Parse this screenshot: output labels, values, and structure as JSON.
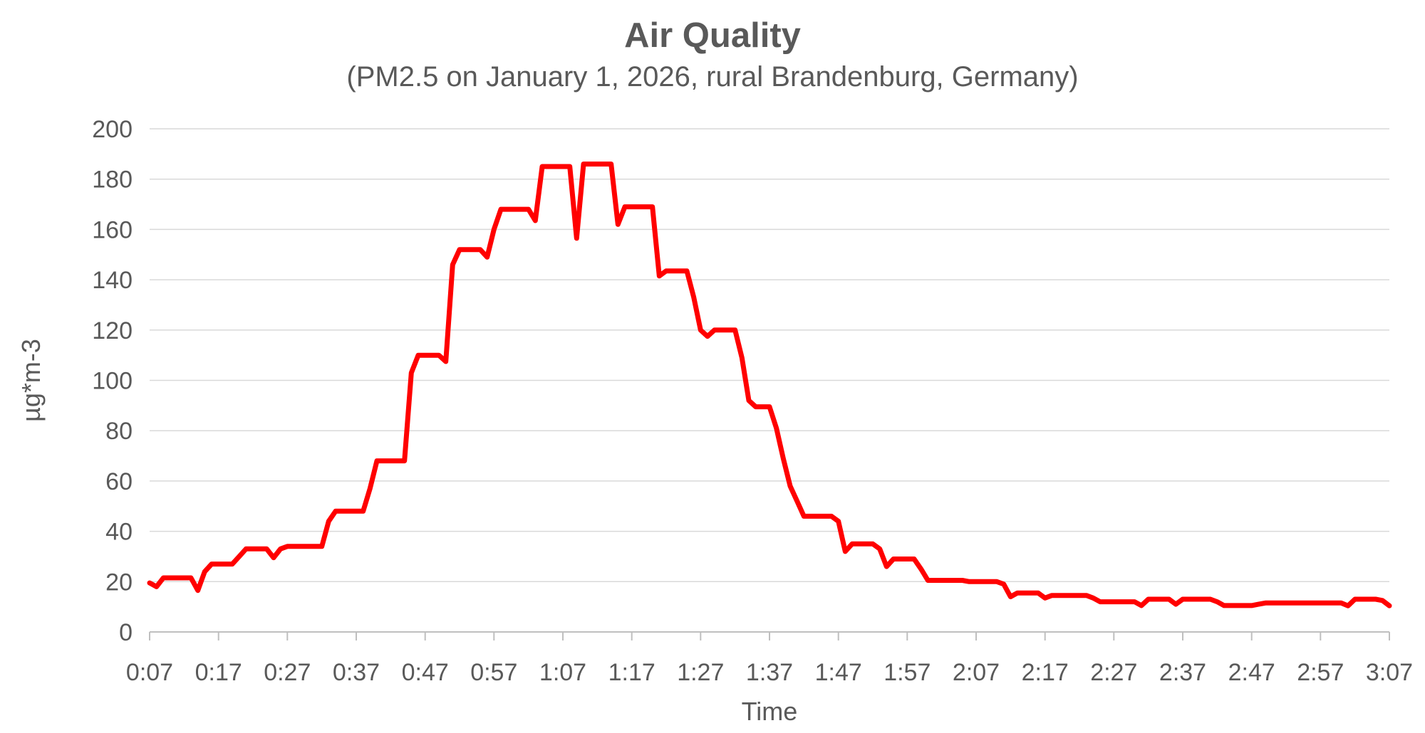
{
  "chart_data": {
    "type": "line",
    "title": "Air Quality",
    "subtitle": "(PM2.5 on January 1, 2026, rural Brandenburg, Germany)",
    "xlabel": "Time",
    "ylabel": "µg*m-3",
    "ylim": [
      0,
      200
    ],
    "y_tick_values": [
      0,
      20,
      40,
      60,
      80,
      100,
      120,
      140,
      160,
      180,
      200
    ],
    "y_tick_labels": [
      "0",
      "20",
      "40",
      "60",
      "80",
      "100",
      "120",
      "140",
      "160",
      "180",
      "200"
    ],
    "x_tick_labels": [
      "0:07",
      "0:17",
      "0:27",
      "0:37",
      "0:47",
      "0:57",
      "1:07",
      "1:17",
      "1:27",
      "1:37",
      "1:47",
      "1:57",
      "2:07",
      "2:17",
      "2:27",
      "2:37",
      "2:47",
      "2:57",
      "3:07"
    ],
    "grid": "horizontal gridlines every 20 units",
    "legend": "none",
    "colors": {
      "line": "#FF0000",
      "text": "#595959",
      "gridline": "#D9D9D9",
      "axis": "#BFBFBF"
    },
    "series": [
      {
        "name": "PM2.5",
        "start_time": "0:07",
        "end_time": "3:07",
        "interval_minutes": 1,
        "values": [
          19.5,
          18,
          21.5,
          21.5,
          21.5,
          21.5,
          21.5,
          16.5,
          24,
          27,
          27,
          27,
          27,
          30,
          33,
          33,
          33,
          33,
          29.5,
          33,
          34,
          34,
          34,
          34,
          34,
          34,
          44,
          48,
          48,
          48,
          48,
          48,
          57,
          68,
          68,
          68,
          68,
          68,
          103,
          110,
          110,
          110,
          110,
          107.5,
          146,
          152,
          152,
          152,
          152,
          149,
          160,
          168,
          168,
          168,
          168,
          168,
          163.5,
          185,
          185,
          185,
          185,
          185,
          156.5,
          186,
          186,
          186,
          186,
          186,
          162,
          169,
          169,
          169,
          169,
          169,
          141.5,
          143.5,
          143.5,
          143.5,
          143.5,
          133,
          120,
          117.5,
          120,
          120,
          120,
          120,
          109,
          92,
          89.5,
          89.5,
          89.5,
          81,
          69,
          58,
          52,
          46,
          46,
          46,
          46,
          46,
          44,
          32,
          35,
          35,
          35,
          35,
          33,
          26,
          29,
          29,
          29,
          29,
          25,
          20.5,
          20.5,
          20.5,
          20.5,
          20.5,
          20.5,
          20,
          20,
          20,
          20,
          20,
          19,
          14,
          15.5,
          15.5,
          15.5,
          15.5,
          13.5,
          14.5,
          14.5,
          14.5,
          14.5,
          14.5,
          14.5,
          13.5,
          12,
          12,
          12,
          12,
          12,
          12,
          10.5,
          13,
          13,
          13,
          13,
          11,
          13,
          13,
          13,
          13,
          13,
          12,
          10.5,
          10.5,
          10.5,
          10.5,
          10.5,
          11,
          11.5,
          11.5,
          11.5,
          11.5,
          11.5,
          11.5,
          11.5,
          11.5,
          11.5,
          11.5,
          11.5,
          11.5,
          10.4,
          13,
          13,
          13,
          13,
          12.5,
          10.4
        ]
      }
    ]
  }
}
